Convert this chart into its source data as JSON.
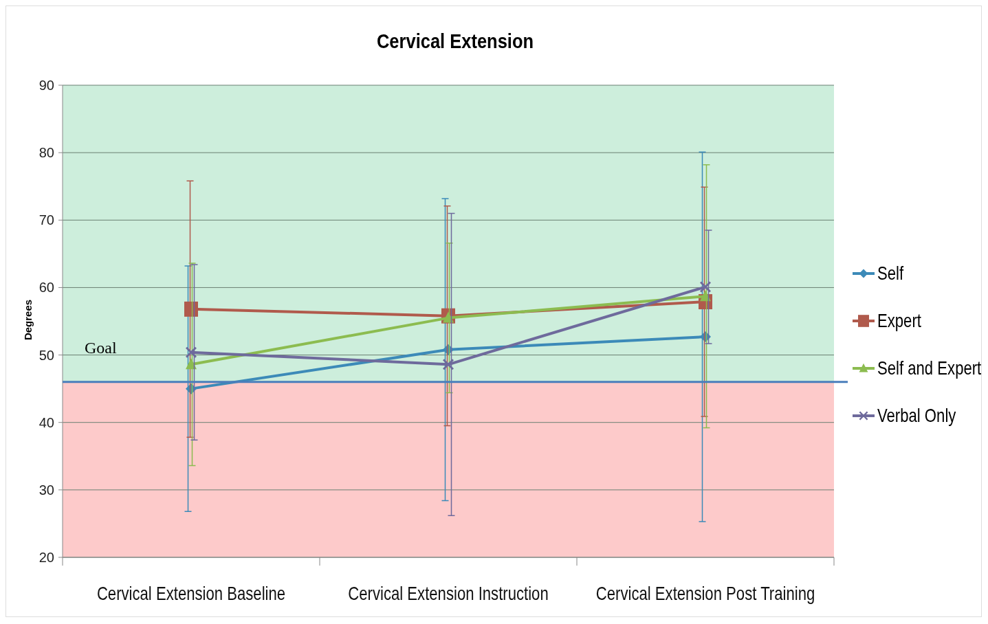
{
  "chart_data": {
    "type": "line",
    "title": "Cervical Extension",
    "ylabel": "Degrees",
    "categories": [
      "Cervical Extension Baseline",
      "Cervical Extension Instruction",
      "Cervical Extension Post Training"
    ],
    "series": [
      {
        "name": "Self",
        "color": "#3c8ab8",
        "marker": "diamond",
        "values": [
          45.0,
          50.8,
          52.7
        ],
        "errors": [
          18.2,
          22.4,
          27.4
        ]
      },
      {
        "name": "Expert",
        "color": "#b05a4c",
        "marker": "square",
        "values": [
          56.8,
          55.8,
          57.9
        ],
        "errors": [
          19.0,
          16.3,
          17.0
        ]
      },
      {
        "name": "Self and Expert",
        "color": "#8cbc50",
        "marker": "triangle",
        "values": [
          48.6,
          55.5,
          58.7
        ],
        "errors": [
          15.0,
          11.1,
          19.5
        ]
      },
      {
        "name": "Verbal Only",
        "color": "#6e6a9c",
        "marker": "cross",
        "values": [
          50.4,
          48.6,
          60.1
        ],
        "errors": [
          13.0,
          22.4,
          8.4
        ]
      }
    ],
    "ylim": [
      20,
      90
    ],
    "yticks": [
      20,
      30,
      40,
      50,
      60,
      70,
      80,
      90
    ],
    "grid": "y",
    "legend": "right",
    "bands": [
      {
        "axis": "y",
        "from": 46,
        "to": 90,
        "color": "#cdeedc"
      },
      {
        "axis": "y",
        "from": 20,
        "to": 46,
        "color": "#fdcaca"
      }
    ],
    "ref_lines": [
      {
        "axis": "y",
        "value": 46,
        "label": "Goal",
        "color": "#4a7ebb"
      }
    ]
  }
}
